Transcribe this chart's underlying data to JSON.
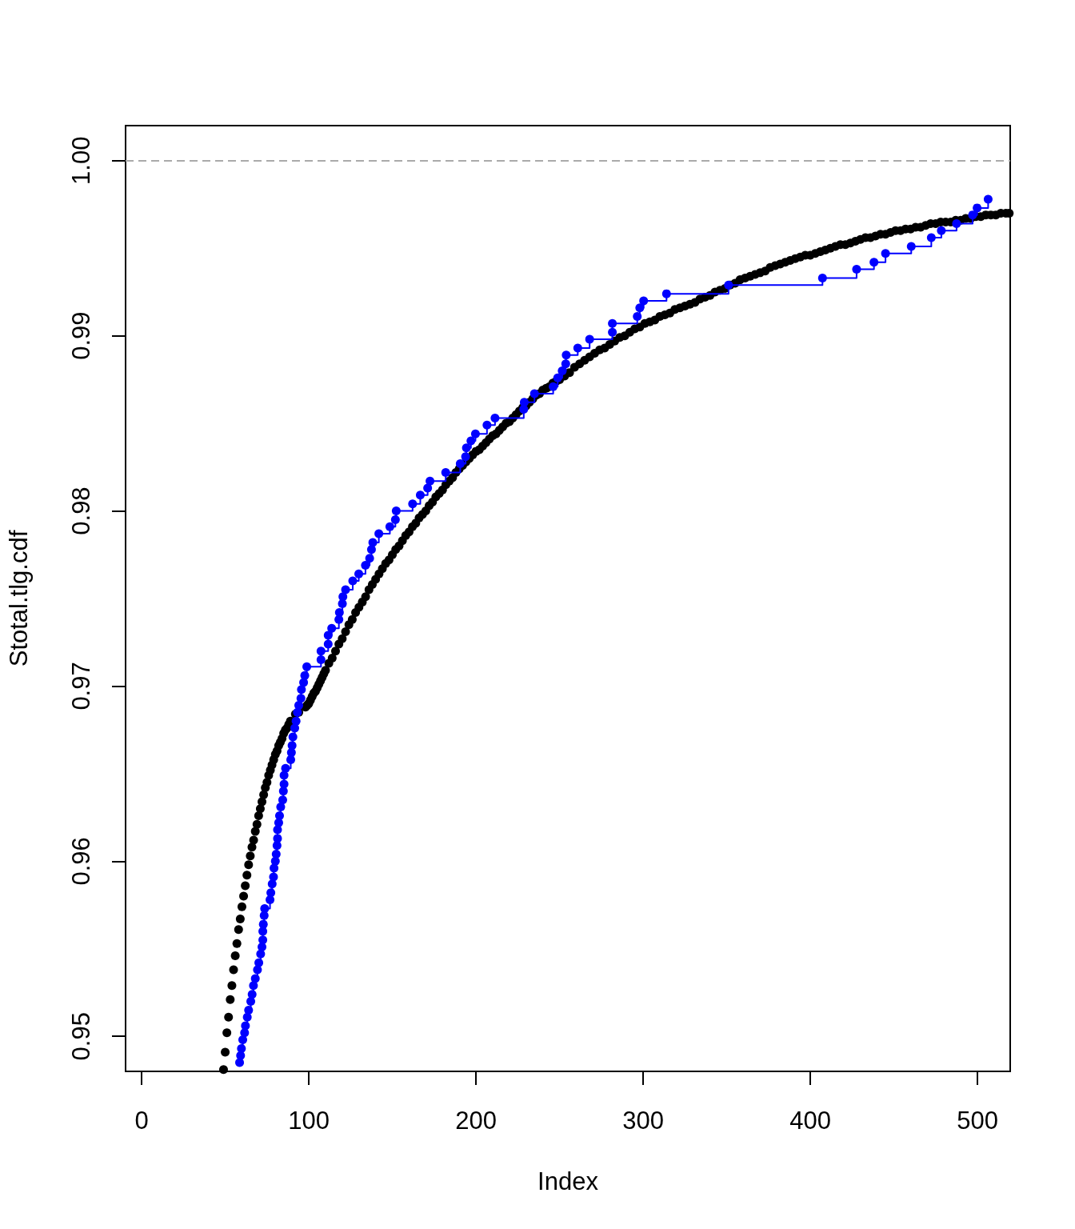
{
  "chart_data": {
    "type": "scatter",
    "xlabel": "Index",
    "ylabel": "Stotal.tlg.cdf",
    "xlim": [
      -9.6,
      519.6
    ],
    "ylim": [
      0.948,
      1.002
    ],
    "xticks": [
      0,
      100,
      200,
      300,
      400,
      500
    ],
    "yticks": [
      0.95,
      0.96,
      0.97,
      0.98,
      0.99,
      {
        "value": 1,
        "label": "1.00"
      }
    ],
    "grid": false,
    "marker": "circle",
    "ref_lines": [
      {
        "axis": "y",
        "value": 1,
        "color": "#aaaaaa",
        "line_style": "dashed"
      }
    ],
    "series": [
      {
        "color": "#000000",
        "x": [
          49,
          50,
          51,
          52,
          53,
          54,
          55,
          56,
          57,
          58,
          59,
          60,
          61,
          62,
          63,
          64,
          65,
          66,
          67,
          68,
          69,
          70,
          71,
          72,
          73,
          74,
          75,
          76,
          77,
          78,
          79,
          80,
          81,
          82,
          83,
          84,
          85,
          86,
          87,
          88,
          89,
          92,
          94,
          98,
          99,
          100,
          101,
          102,
          103,
          104,
          105,
          106,
          107,
          108,
          109,
          110,
          112,
          114,
          116,
          118,
          120,
          122,
          124,
          126,
          128,
          130,
          132,
          134,
          136,
          138,
          140,
          142,
          144,
          146,
          148,
          150,
          152,
          154,
          156,
          158,
          160,
          162,
          164,
          166,
          168,
          170,
          172,
          174,
          176,
          178,
          180,
          182,
          184,
          186,
          188,
          190,
          192,
          194,
          196,
          198,
          200,
          202,
          204,
          206,
          208,
          210,
          212,
          214,
          216,
          218,
          220,
          222,
          224,
          226,
          228,
          230,
          232,
          234,
          236,
          238,
          240,
          242,
          244,
          246,
          248,
          250,
          253,
          256,
          259,
          262,
          265,
          268,
          271,
          274,
          277,
          280,
          283,
          286,
          289,
          292,
          295,
          298,
          301,
          304,
          307,
          310,
          313,
          316,
          319,
          322,
          325,
          328,
          331,
          334,
          337,
          340,
          343,
          346,
          349,
          352,
          355,
          358,
          361,
          364,
          367,
          370,
          373,
          376,
          379,
          382,
          385,
          388,
          391,
          394,
          397,
          400,
          403,
          406,
          409,
          412,
          415,
          418,
          421,
          424,
          427,
          430,
          433,
          436,
          439,
          442,
          445,
          448,
          451,
          454,
          457,
          460,
          463,
          466,
          469,
          472,
          475,
          478,
          481,
          484,
          487,
          490,
          493,
          496,
          499,
          502,
          505,
          508,
          511,
          514,
          517,
          519
        ],
        "values": [
          0.9481,
          0.9491,
          0.9502,
          0.9511,
          0.9521,
          0.9529,
          0.9538,
          0.9546,
          0.9553,
          0.9561,
          0.9567,
          0.9574,
          0.958,
          0.9586,
          0.9592,
          0.9598,
          0.9603,
          0.9608,
          0.9612,
          0.9617,
          0.9621,
          0.9626,
          0.963,
          0.9634,
          0.9638,
          0.9642,
          0.9645,
          0.9649,
          0.9652,
          0.9655,
          0.9658,
          0.9661,
          0.9663,
          0.9666,
          0.9668,
          0.967,
          0.9673,
          0.9675,
          0.9676,
          0.9678,
          0.968,
          0.9684,
          0.9685,
          0.9688,
          0.9689,
          0.969,
          0.9692,
          0.9694,
          0.9696,
          0.9697,
          0.9699,
          0.9701,
          0.9703,
          0.9705,
          0.9707,
          0.9709,
          0.9713,
          0.9716,
          0.972,
          0.9724,
          0.9727,
          0.9731,
          0.9735,
          0.9738,
          0.9742,
          0.9745,
          0.9748,
          0.9751,
          0.9755,
          0.9758,
          0.9761,
          0.9764,
          0.9767,
          0.977,
          0.9772,
          0.9775,
          0.9778,
          0.978,
          0.9783,
          0.9786,
          0.9788,
          0.9791,
          0.9793,
          0.9796,
          0.9798,
          0.98,
          0.9803,
          0.9805,
          0.9808,
          0.981,
          0.9812,
          0.9815,
          0.9817,
          0.9819,
          0.9822,
          0.9824,
          0.9826,
          0.9828,
          0.983,
          0.9832,
          0.9834,
          0.9835,
          0.9837,
          0.9839,
          0.9841,
          0.9843,
          0.9844,
          0.9846,
          0.9848,
          0.985,
          0.9851,
          0.9853,
          0.9855,
          0.9857,
          0.9859,
          0.986,
          0.9862,
          0.9864,
          0.9866,
          0.9867,
          0.9869,
          0.987,
          0.9871,
          0.9873,
          0.9874,
          0.9875,
          0.9877,
          0.9879,
          0.9882,
          0.9884,
          0.9886,
          0.9888,
          0.989,
          0.9892,
          0.9893,
          0.9895,
          0.9897,
          0.9899,
          0.99,
          0.9902,
          0.9904,
          0.9905,
          0.9907,
          0.9908,
          0.9909,
          0.9911,
          0.9912,
          0.9913,
          0.9915,
          0.9916,
          0.9917,
          0.9918,
          0.9919,
          0.9921,
          0.9922,
          0.9923,
          0.9925,
          0.9926,
          0.9927,
          0.9929,
          0.993,
          0.9932,
          0.9933,
          0.9934,
          0.9935,
          0.9936,
          0.9937,
          0.9939,
          0.994,
          0.9941,
          0.9942,
          0.9943,
          0.9944,
          0.9945,
          0.9946,
          0.9946,
          0.9947,
          0.9948,
          0.9949,
          0.995,
          0.9951,
          0.9952,
          0.9952,
          0.9953,
          0.9954,
          0.9955,
          0.9956,
          0.9956,
          0.9957,
          0.9958,
          0.9958,
          0.9959,
          0.996,
          0.996,
          0.9961,
          0.9961,
          0.9962,
          0.9962,
          0.9963,
          0.9964,
          0.9964,
          0.9965,
          0.9965,
          0.9965,
          0.9966,
          0.9966,
          0.9967,
          0.9967,
          0.9968,
          0.9968,
          0.9969,
          0.9969,
          0.9969,
          0.997,
          0.997,
          0.997
        ]
      },
      {
        "type": "step",
        "color": "#0000ff",
        "x": [
          58.6,
          59.2,
          59.7,
          60.5,
          61.6,
          62.1,
          63.2,
          64.0,
          65.3,
          66.1,
          66.9,
          68.0,
          69.3,
          70.1,
          71.2,
          72.0,
          72.5,
          72.5,
          72.8,
          73.3,
          73.6,
          76.8,
          77.3,
          78.1,
          78.9,
          79.2,
          80.0,
          80.5,
          81.0,
          81.3,
          81.3,
          82.0,
          82.5,
          83.2,
          84.4,
          84.8,
          85.2,
          85.2,
          86.1,
          89.2,
          89.6,
          90.0,
          90.5,
          91.6,
          92.4,
          93.2,
          94.0,
          95.3,
          95.6,
          96.9,
          97.6,
          98.8,
          107.3,
          107.3,
          111.6,
          111.6,
          113.7,
          118.0,
          118.3,
          120.1,
          120.4,
          122.0,
          126.3,
          129.9,
          133.9,
          136.4,
          137.5,
          138.3,
          141.9,
          148.5,
          151.8,
          152.3,
          162.1,
          166.7,
          171.1,
          172.5,
          181.9,
          190.6,
          193.8,
          194.3,
          197.0,
          199.7,
          206.6,
          211.4,
          228.6,
          228.9,
          235.0,
          246.2,
          248.9,
          251.6,
          253.7,
          254.0,
          260.9,
          268.0,
          281.6,
          281.6,
          296.5,
          298.0,
          300.3,
          314.0,
          351.1,
          407.3,
          427.7,
          438.1,
          445.0,
          460.4,
          472.4,
          478.4,
          487.5,
          497.1,
          499.8,
          506.4
        ],
        "values": [
          0.9485,
          0.9489,
          0.9493,
          0.9498,
          0.9502,
          0.9506,
          0.9511,
          0.9515,
          0.952,
          0.9524,
          0.9529,
          0.9533,
          0.9538,
          0.9542,
          0.9547,
          0.9551,
          0.9555,
          0.956,
          0.9564,
          0.9569,
          0.9573,
          0.9578,
          0.9582,
          0.9587,
          0.9591,
          0.9596,
          0.96,
          0.9604,
          0.9609,
          0.9613,
          0.9618,
          0.9622,
          0.9626,
          0.9631,
          0.9635,
          0.964,
          0.9644,
          0.9649,
          0.9653,
          0.9658,
          0.9662,
          0.9666,
          0.9671,
          0.9676,
          0.968,
          0.9685,
          0.9689,
          0.9693,
          0.9698,
          0.9702,
          0.9706,
          0.9711,
          0.9715,
          0.972,
          0.9724,
          0.9729,
          0.9733,
          0.9738,
          0.9742,
          0.9747,
          0.9751,
          0.9755,
          0.976,
          0.9764,
          0.9769,
          0.9773,
          0.9778,
          0.9782,
          0.9787,
          0.9791,
          0.9795,
          0.98,
          0.9804,
          0.9809,
          0.9813,
          0.9817,
          0.9822,
          0.9827,
          0.9831,
          0.9836,
          0.984,
          0.9844,
          0.9849,
          0.9853,
          0.9858,
          0.9862,
          0.9867,
          0.9871,
          0.9876,
          0.988,
          0.9884,
          0.9889,
          0.9893,
          0.9898,
          0.9902,
          0.9907,
          0.9911,
          0.9916,
          0.992,
          0.9924,
          0.9929,
          0.9933,
          0.9938,
          0.9942,
          0.9947,
          0.9951,
          0.9956,
          0.996,
          0.9964,
          0.9969,
          0.9973,
          0.9978
        ]
      }
    ]
  }
}
